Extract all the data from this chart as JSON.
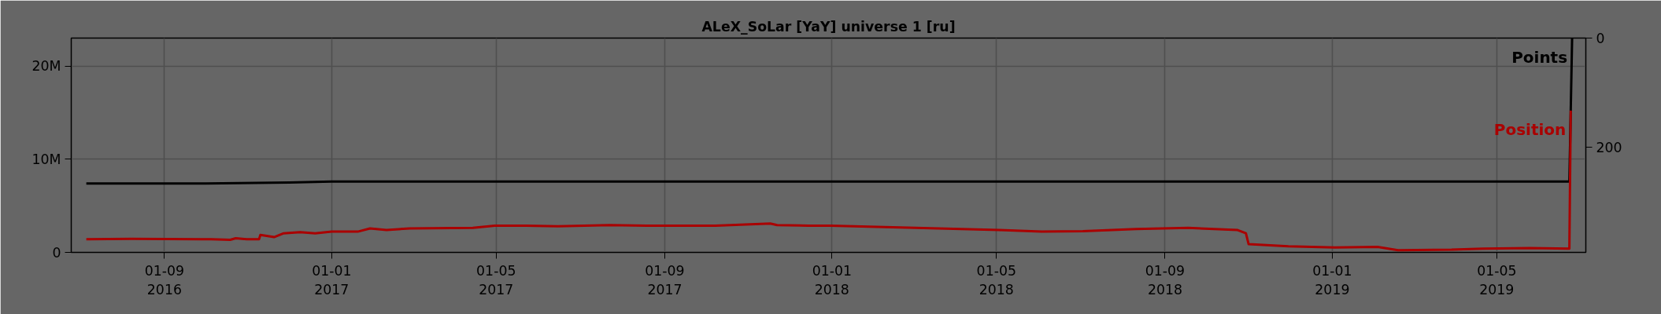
{
  "chart_data": {
    "type": "line",
    "title": "ALeX_SoLar [YaY] universe 1 [ru]",
    "ylim": [
      0,
      23000000
    ],
    "yticks": [
      0,
      {
        "value": 10000000,
        "label": "10M"
      },
      {
        "value": 20000000,
        "label": "20M"
      }
    ],
    "y2lim": [
      393,
      0
    ],
    "y2ticks": [
      0,
      200
    ],
    "xlim": [
      "2016-06-25",
      "2019-07-05"
    ],
    "xticks": [
      {
        "value": "2016-09-01",
        "label": "01-09\n2016"
      },
      {
        "value": "2017-01-01",
        "label": "01-01\n2017"
      },
      {
        "value": "2017-05-01",
        "label": "01-05\n2017"
      },
      {
        "value": "2017-09-01",
        "label": "01-09\n2017"
      },
      {
        "value": "2018-01-01",
        "label": "01-01\n2018"
      },
      {
        "value": "2018-05-01",
        "label": "01-05\n2018"
      },
      {
        "value": "2018-09-01",
        "label": "01-09\n2018"
      },
      {
        "value": "2019-01-01",
        "label": "01-01\n2019"
      },
      {
        "value": "2019-05-01",
        "label": "01-05\n2019"
      }
    ],
    "grid": true,
    "series": [
      {
        "name": "Points",
        "color": "#000000",
        "x": [
          "2016-07-06",
          "2016-10-01",
          "2016-12-01",
          "2017-01-01",
          "2017-06-01",
          "2018-06-01",
          "2019-06-23",
          "2019-06-25"
        ],
        "values": [
          7400000,
          7400000,
          7500000,
          7600000,
          7600000,
          7600000,
          7600000,
          23000000
        ]
      },
      {
        "name": "Position",
        "color": "#aa0000",
        "axis": "y2",
        "x": [
          "2016-07-06",
          "2016-08-08",
          "2016-10-05",
          "2016-10-19",
          "2016-10-23",
          "2016-10-31",
          "2016-11-09",
          "2016-11-10",
          "2016-11-20",
          "2016-11-27",
          "2016-12-09",
          "2016-12-20",
          "2017-01-01",
          "2017-01-20",
          "2017-01-29",
          "2017-02-10",
          "2017-02-27",
          "2017-04-14",
          "2017-04-30",
          "2017-05-23",
          "2017-06-15",
          "2017-07-23",
          "2017-08-19",
          "2017-10-08",
          "2017-11-17",
          "2017-11-22",
          "2017-12-15",
          "2017-12-31",
          "2018-03-03",
          "2018-05-03",
          "2018-06-03",
          "2018-07-03",
          "2018-08-11",
          "2018-09-18",
          "2018-10-24",
          "2018-10-30",
          "2018-11-01",
          "2018-11-30",
          "2019-01-03",
          "2019-02-03",
          "2019-02-18",
          "2019-03-29",
          "2019-04-21",
          "2019-05-25",
          "2019-06-23",
          "2019-06-24"
        ],
        "values": [
          369,
          368,
          369,
          370,
          367,
          369,
          369,
          361,
          365,
          358,
          356,
          358,
          355,
          355,
          349,
          352,
          349,
          348,
          344,
          344,
          345,
          343,
          344,
          344,
          340,
          343,
          344,
          344,
          348,
          352,
          355,
          354,
          350,
          348,
          352,
          358,
          378,
          382,
          384,
          383,
          389,
          388,
          386,
          385,
          386,
          133
        ]
      }
    ]
  }
}
